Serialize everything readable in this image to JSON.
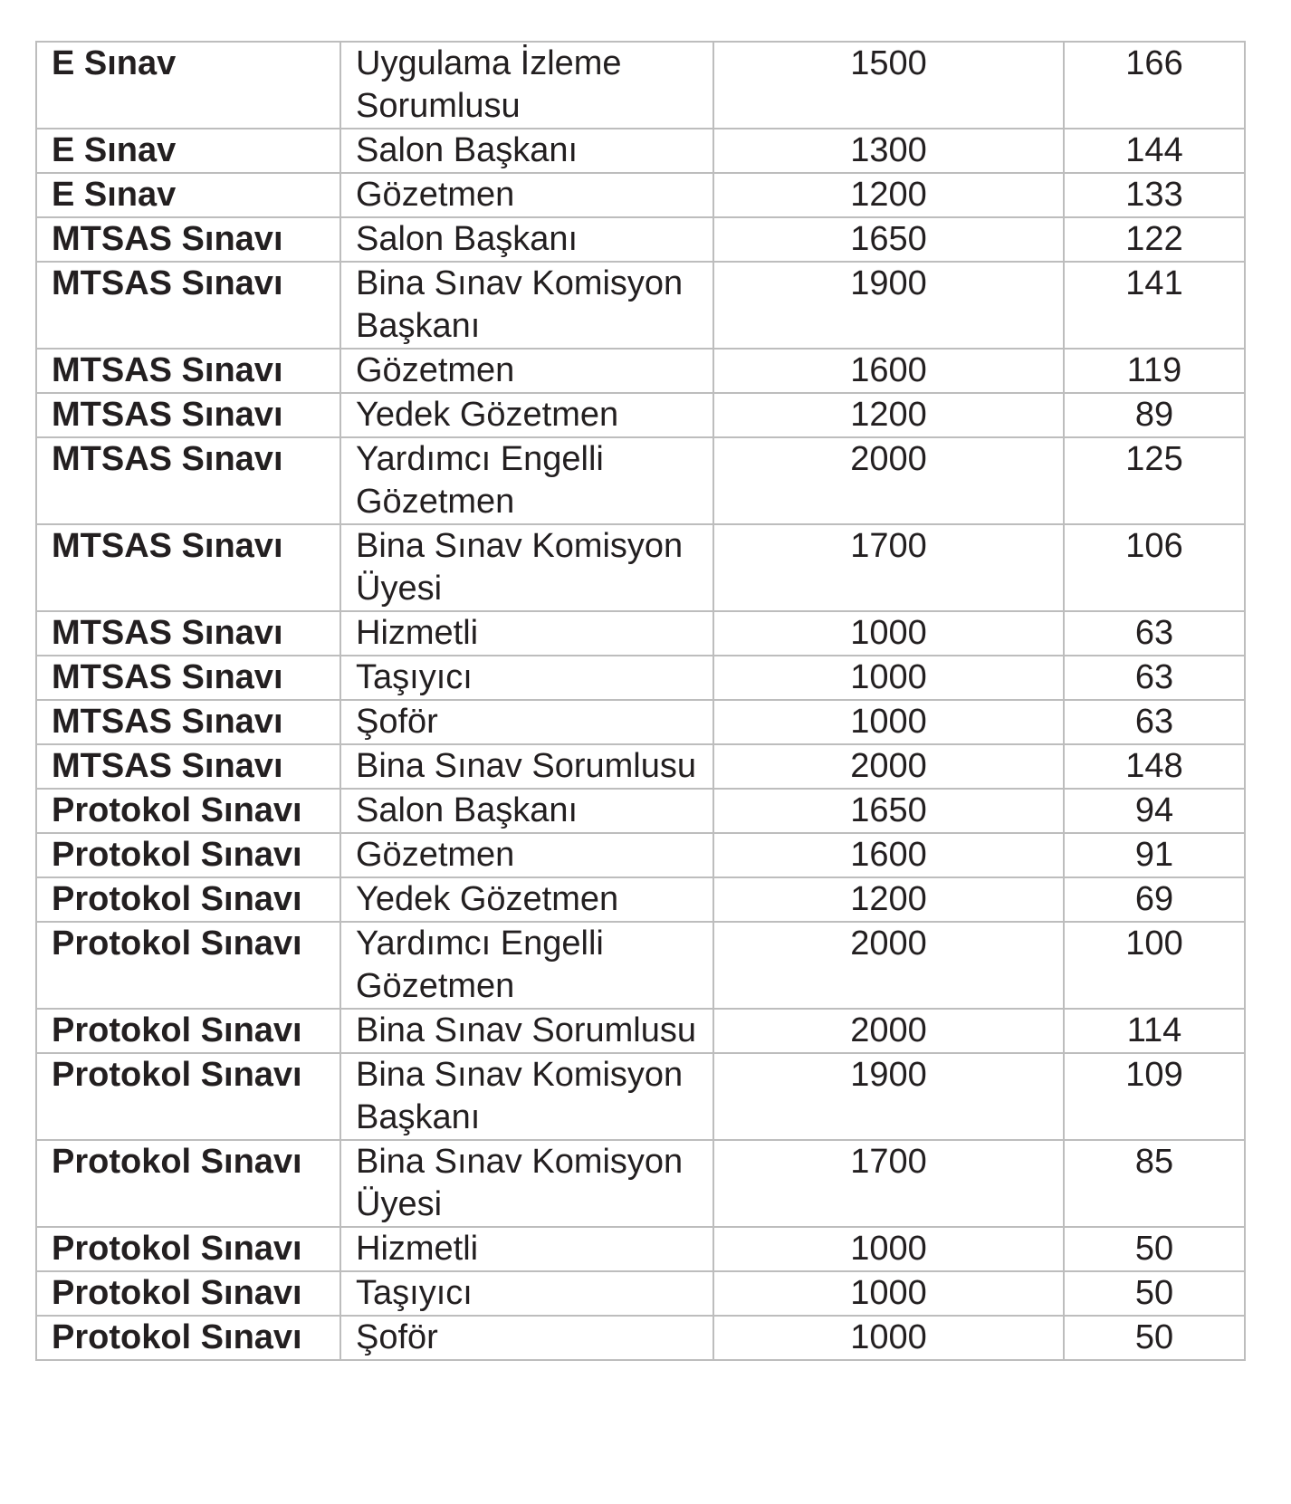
{
  "table": {
    "rows": [
      {
        "exam": "E Sınav",
        "role": "Uygulama İzleme Sorumlusu",
        "amount": "1500",
        "count": "166"
      },
      {
        "exam": "E Sınav",
        "role": "Salon Başkanı",
        "amount": "1300",
        "count": "144"
      },
      {
        "exam": "E Sınav",
        "role": "Gözetmen",
        "amount": "1200",
        "count": "133"
      },
      {
        "exam": "MTSAS Sınavı",
        "role": "Salon Başkanı",
        "amount": "1650",
        "count": "122"
      },
      {
        "exam": "MTSAS Sınavı",
        "role": "Bina Sınav Komisyon Başkanı",
        "amount": "1900",
        "count": "141"
      },
      {
        "exam": "MTSAS Sınavı",
        "role": "Gözetmen",
        "amount": "1600",
        "count": "119"
      },
      {
        "exam": "MTSAS Sınavı",
        "role": "Yedek Gözetmen",
        "amount": "1200",
        "count": "89"
      },
      {
        "exam": "MTSAS Sınavı",
        "role": "Yardımcı Engelli Gözetmen",
        "amount": "2000",
        "count": "125"
      },
      {
        "exam": "MTSAS Sınavı",
        "role": "Bina Sınav Komisyon Üyesi",
        "amount": "1700",
        "count": "106"
      },
      {
        "exam": "MTSAS Sınavı",
        "role": "Hizmetli",
        "amount": "1000",
        "count": "63"
      },
      {
        "exam": "MTSAS Sınavı",
        "role": "Taşıyıcı",
        "amount": "1000",
        "count": "63"
      },
      {
        "exam": "MTSAS Sınavı",
        "role": "Şoför",
        "amount": "1000",
        "count": "63"
      },
      {
        "exam": "MTSAS Sınavı",
        "role": "Bina Sınav Sorumlusu",
        "amount": "2000",
        "count": "148"
      },
      {
        "exam": "Protokol Sınavı",
        "role": "Salon Başkanı",
        "amount": "1650",
        "count": "94"
      },
      {
        "exam": "Protokol Sınavı",
        "role": "Gözetmen",
        "amount": "1600",
        "count": "91"
      },
      {
        "exam": "Protokol Sınavı",
        "role": "Yedek Gözetmen",
        "amount": "1200",
        "count": "69"
      },
      {
        "exam": "Protokol Sınavı",
        "role": "Yardımcı Engelli Gözetmen",
        "amount": "2000",
        "count": "100"
      },
      {
        "exam": "Protokol Sınavı",
        "role": "Bina Sınav Sorumlusu",
        "amount": "2000",
        "count": "114"
      },
      {
        "exam": "Protokol Sınavı",
        "role": "Bina Sınav Komisyon Başkanı",
        "amount": "1900",
        "count": "109"
      },
      {
        "exam": "Protokol Sınavı",
        "role": "Bina Sınav Komisyon Üyesi",
        "amount": "1700",
        "count": "85"
      },
      {
        "exam": "Protokol Sınavı",
        "role": "Hizmetli",
        "amount": "1000",
        "count": "50"
      },
      {
        "exam": "Protokol Sınavı",
        "role": "Taşıyıcı",
        "amount": "1000",
        "count": "50"
      },
      {
        "exam": "Protokol Sınavı",
        "role": "Şoför",
        "amount": "1000",
        "count": "50"
      }
    ]
  }
}
